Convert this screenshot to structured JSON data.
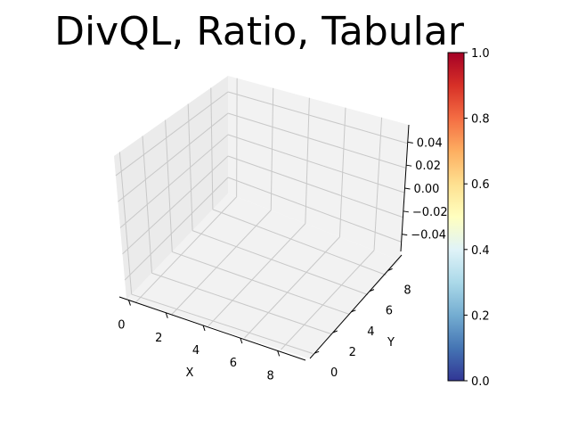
{
  "chart_data": {
    "type": "scatter",
    "projection": "3d",
    "title": "DivQL, Ratio, Tabular",
    "xlabel": "X",
    "ylabel": "Y",
    "zlabel": "",
    "xlim": [
      -0.5,
      9.5
    ],
    "ylim": [
      -0.5,
      9.5
    ],
    "zlim": [
      -0.055,
      0.055
    ],
    "x_ticks": [
      "0",
      "2",
      "4",
      "6",
      "8"
    ],
    "y_ticks": [
      "0",
      "2",
      "4",
      "6",
      "8"
    ],
    "z_ticks": [
      "0.04",
      "0.02",
      "0.00",
      "−0.02",
      "−0.04"
    ],
    "grid": true,
    "series": [],
    "colorbar": {
      "colormap": "RdYlBu_r",
      "range": [
        0.0,
        1.0
      ],
      "ticks": [
        "0.0",
        "0.2",
        "0.4",
        "0.6",
        "0.8",
        "1.0"
      ],
      "colors": [
        "#313695",
        "#4575b4",
        "#74add1",
        "#abd9e9",
        "#e0f3f8",
        "#ffffbf",
        "#fee090",
        "#fdae61",
        "#f46d43",
        "#d73027",
        "#a50026"
      ]
    }
  },
  "colors": {
    "pane_left": "#ebebeb",
    "pane_right": "#f2f2f2",
    "pane_floor": "#f2f2f2",
    "grid": "#c8c8c8"
  }
}
